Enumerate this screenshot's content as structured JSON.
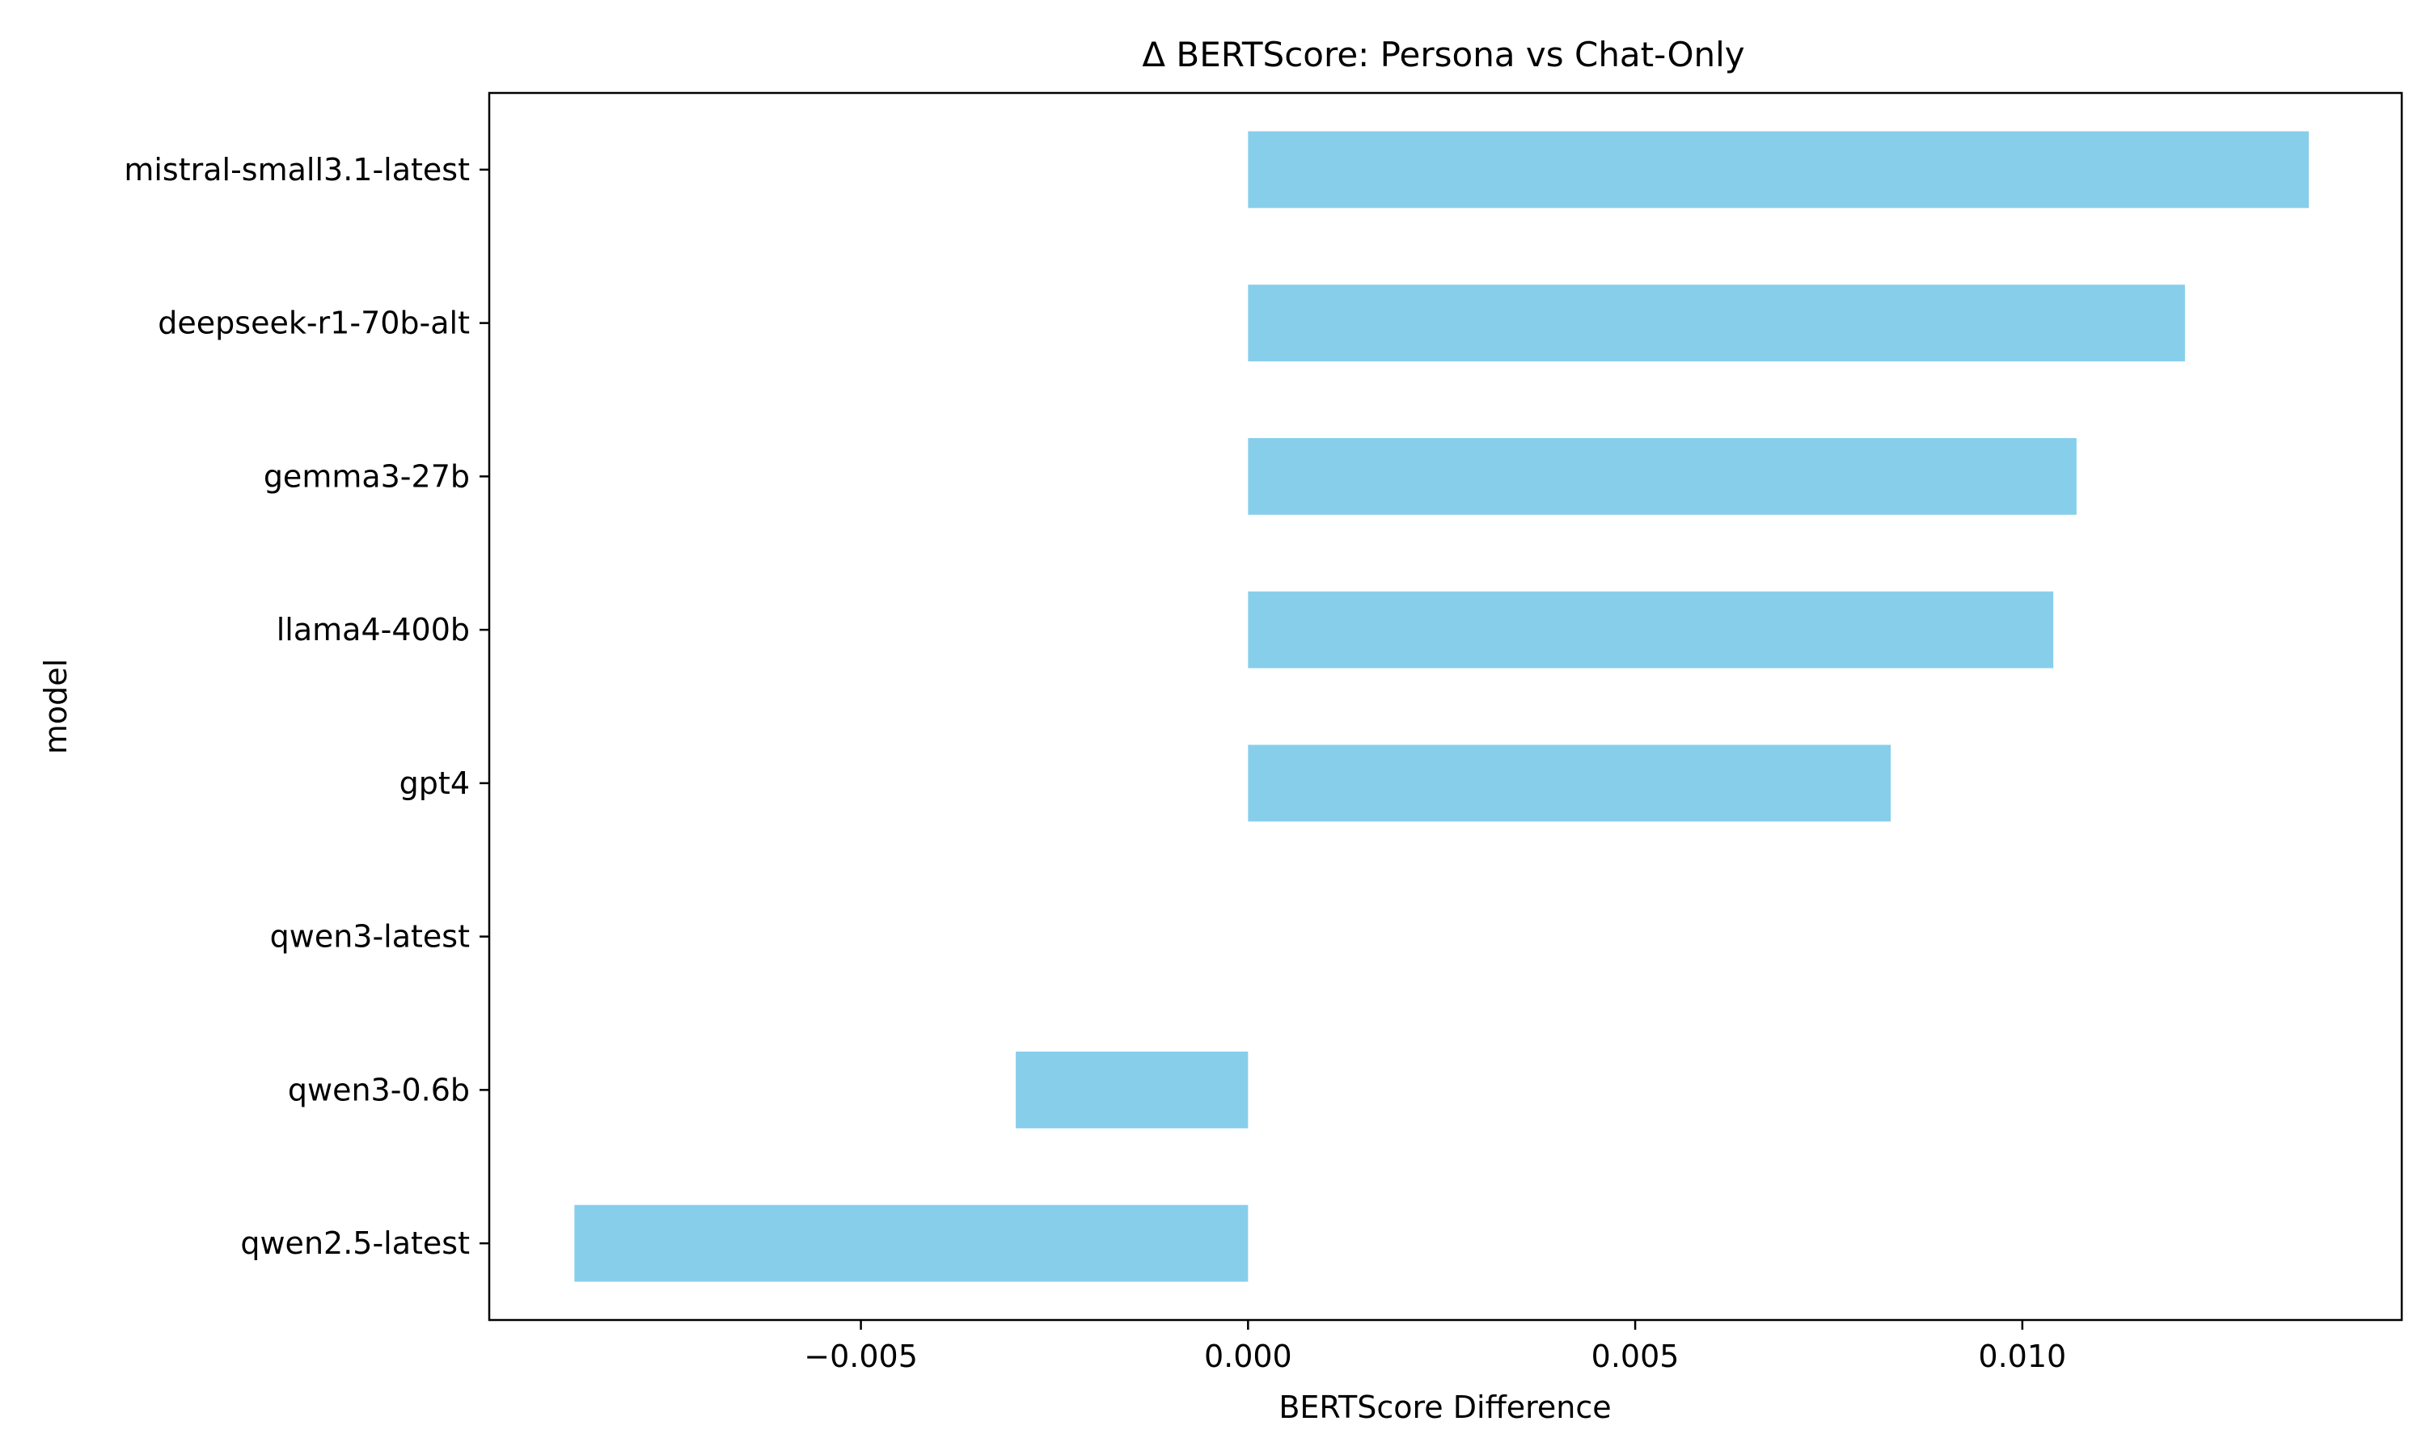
{
  "chart_data": {
    "type": "bar",
    "orientation": "horizontal",
    "title": "Δ BERTScore: Persona vs Chat-Only",
    "xlabel": "BERTScore Difference",
    "ylabel": "model",
    "categories": [
      "mistral-small3.1-latest",
      "deepseek-r1-70b-alt",
      "gemma3-27b",
      "llama4-400b",
      "gpt4",
      "qwen3-latest",
      "qwen3-0.6b",
      "qwen2.5-latest"
    ],
    "values": [
      0.0137,
      0.0121,
      0.0107,
      0.0104,
      0.0083,
      0.0,
      -0.003,
      -0.0087
    ],
    "xlim": [
      -0.0098,
      0.0149
    ],
    "xticks": [
      -0.005,
      0.0,
      0.005,
      0.01
    ],
    "xtick_labels": [
      "−0.005",
      "0.000",
      "0.005",
      "0.010"
    ],
    "bar_color": "#87ceeb",
    "grid": false,
    "legend": "none"
  }
}
